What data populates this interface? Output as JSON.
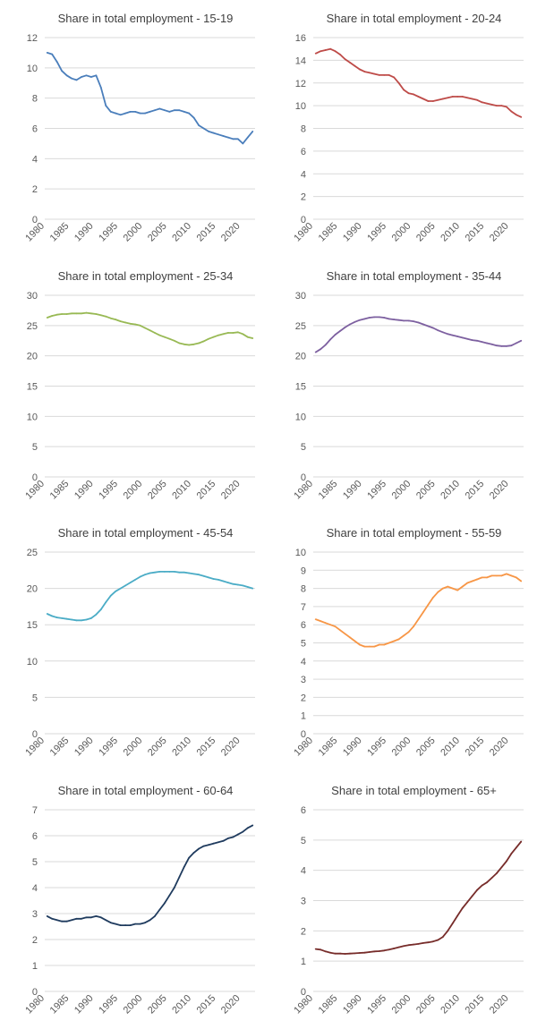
{
  "chart_data": [
    {
      "type": "line",
      "title": "Share in total employment - 15-19",
      "color": "#4a7ebb",
      "ylim": [
        0,
        12
      ],
      "yticks": [
        "0",
        "2",
        "4",
        "6",
        "8",
        "10",
        "12"
      ],
      "xticks": [
        "1980",
        "1985",
        "1990",
        "1995",
        "2000",
        "2005",
        "2010",
        "2015",
        "2020"
      ],
      "grid": true,
      "x": [
        1980,
        1981,
        1982,
        1983,
        1984,
        1985,
        1986,
        1987,
        1988,
        1989,
        1990,
        1991,
        1992,
        1993,
        1994,
        1995,
        1996,
        1997,
        1998,
        1999,
        2000,
        2001,
        2002,
        2003,
        2004,
        2005,
        2006,
        2007,
        2008,
        2009,
        2010,
        2011,
        2012,
        2013,
        2014,
        2015,
        2016,
        2017,
        2018,
        2019,
        2020,
        2021,
        2022
      ],
      "values": [
        11.0,
        10.9,
        10.4,
        9.8,
        9.5,
        9.3,
        9.2,
        9.4,
        9.5,
        9.4,
        9.5,
        8.7,
        7.5,
        7.1,
        7.0,
        6.9,
        7.0,
        7.1,
        7.1,
        7.0,
        7.0,
        7.1,
        7.2,
        7.3,
        7.2,
        7.1,
        7.2,
        7.2,
        7.1,
        7.0,
        6.7,
        6.2,
        6.0,
        5.8,
        5.7,
        5.6,
        5.5,
        5.4,
        5.3,
        5.3,
        5.0,
        5.4,
        5.8
      ]
    },
    {
      "type": "line",
      "title": "Share in total employment - 20-24",
      "color": "#be4b48",
      "ylim": [
        0,
        16
      ],
      "yticks": [
        "0",
        "2",
        "4",
        "6",
        "8",
        "10",
        "12",
        "14",
        "16"
      ],
      "xticks": [
        "1980",
        "1985",
        "1990",
        "1995",
        "2000",
        "2005",
        "2010",
        "2015",
        "2020"
      ],
      "grid": true,
      "x": [
        1980,
        1981,
        1982,
        1983,
        1984,
        1985,
        1986,
        1987,
        1988,
        1989,
        1990,
        1991,
        1992,
        1993,
        1994,
        1995,
        1996,
        1997,
        1998,
        1999,
        2000,
        2001,
        2002,
        2003,
        2004,
        2005,
        2006,
        2007,
        2008,
        2009,
        2010,
        2011,
        2012,
        2013,
        2014,
        2015,
        2016,
        2017,
        2018,
        2019,
        2020,
        2021,
        2022
      ],
      "values": [
        14.6,
        14.8,
        14.9,
        15.0,
        14.8,
        14.5,
        14.1,
        13.8,
        13.5,
        13.2,
        13.0,
        12.9,
        12.8,
        12.7,
        12.7,
        12.7,
        12.5,
        12.0,
        11.4,
        11.1,
        11.0,
        10.8,
        10.6,
        10.4,
        10.4,
        10.5,
        10.6,
        10.7,
        10.8,
        10.8,
        10.8,
        10.7,
        10.6,
        10.5,
        10.3,
        10.2,
        10.1,
        10.0,
        10.0,
        9.9,
        9.5,
        9.2,
        9.0
      ]
    },
    {
      "type": "line",
      "title": "Share in total employment - 25-34",
      "color": "#98b954",
      "ylim": [
        0,
        30
      ],
      "yticks": [
        "0",
        "5",
        "10",
        "15",
        "20",
        "25",
        "30"
      ],
      "xticks": [
        "1980",
        "1985",
        "1990",
        "1995",
        "2000",
        "2005",
        "2010",
        "2015",
        "2020"
      ],
      "grid": true,
      "x": [
        1980,
        1981,
        1982,
        1983,
        1984,
        1985,
        1986,
        1987,
        1988,
        1989,
        1990,
        1991,
        1992,
        1993,
        1994,
        1995,
        1996,
        1997,
        1998,
        1999,
        2000,
        2001,
        2002,
        2003,
        2004,
        2005,
        2006,
        2007,
        2008,
        2009,
        2010,
        2011,
        2012,
        2013,
        2014,
        2015,
        2016,
        2017,
        2018,
        2019,
        2020,
        2021,
        2022
      ],
      "values": [
        26.3,
        26.6,
        26.8,
        26.9,
        26.9,
        27.0,
        27.0,
        27.0,
        27.1,
        27.0,
        26.9,
        26.7,
        26.5,
        26.2,
        26.0,
        25.7,
        25.5,
        25.3,
        25.2,
        25.0,
        24.6,
        24.2,
        23.8,
        23.4,
        23.1,
        22.8,
        22.5,
        22.1,
        21.9,
        21.8,
        21.9,
        22.1,
        22.4,
        22.8,
        23.1,
        23.4,
        23.6,
        23.8,
        23.8,
        23.9,
        23.6,
        23.1,
        22.9
      ]
    },
    {
      "type": "line",
      "title": "Share in total employment - 35-44",
      "color": "#7d60a0",
      "ylim": [
        0,
        30
      ],
      "yticks": [
        "0",
        "5",
        "10",
        "15",
        "20",
        "25",
        "30"
      ],
      "xticks": [
        "1980",
        "1985",
        "1990",
        "1995",
        "2000",
        "2005",
        "2010",
        "2015",
        "2020"
      ],
      "grid": true,
      "x": [
        1980,
        1981,
        1982,
        1983,
        1984,
        1985,
        1986,
        1987,
        1988,
        1989,
        1990,
        1991,
        1992,
        1993,
        1994,
        1995,
        1996,
        1997,
        1998,
        1999,
        2000,
        2001,
        2002,
        2003,
        2004,
        2005,
        2006,
        2007,
        2008,
        2009,
        2010,
        2011,
        2012,
        2013,
        2014,
        2015,
        2016,
        2017,
        2018,
        2019,
        2020,
        2021,
        2022
      ],
      "values": [
        20.6,
        21.1,
        21.8,
        22.7,
        23.5,
        24.1,
        24.7,
        25.2,
        25.6,
        25.9,
        26.1,
        26.3,
        26.4,
        26.4,
        26.3,
        26.1,
        26.0,
        25.9,
        25.8,
        25.8,
        25.7,
        25.5,
        25.2,
        24.9,
        24.6,
        24.2,
        23.9,
        23.6,
        23.4,
        23.2,
        23.0,
        22.8,
        22.6,
        22.5,
        22.3,
        22.1,
        21.9,
        21.7,
        21.6,
        21.6,
        21.7,
        22.1,
        22.5
      ]
    },
    {
      "type": "line",
      "title": "Share in total employment - 45-54",
      "color": "#4bacc6",
      "ylim": [
        0,
        25
      ],
      "yticks": [
        "0",
        "5",
        "10",
        "15",
        "20",
        "25"
      ],
      "xticks": [
        "1980",
        "1985",
        "1990",
        "1995",
        "2000",
        "2005",
        "2010",
        "2015",
        "2020"
      ],
      "grid": true,
      "x": [
        1980,
        1981,
        1982,
        1983,
        1984,
        1985,
        1986,
        1987,
        1988,
        1989,
        1990,
        1991,
        1992,
        1993,
        1994,
        1995,
        1996,
        1997,
        1998,
        1999,
        2000,
        2001,
        2002,
        2003,
        2004,
        2005,
        2006,
        2007,
        2008,
        2009,
        2010,
        2011,
        2012,
        2013,
        2014,
        2015,
        2016,
        2017,
        2018,
        2019,
        2020,
        2021,
        2022
      ],
      "values": [
        16.5,
        16.2,
        16.0,
        15.9,
        15.8,
        15.7,
        15.6,
        15.6,
        15.7,
        15.9,
        16.4,
        17.1,
        18.1,
        19.0,
        19.6,
        20.0,
        20.4,
        20.8,
        21.2,
        21.6,
        21.9,
        22.1,
        22.2,
        22.3,
        22.3,
        22.3,
        22.3,
        22.2,
        22.2,
        22.1,
        22.0,
        21.9,
        21.7,
        21.5,
        21.3,
        21.2,
        21.0,
        20.8,
        20.6,
        20.5,
        20.4,
        20.2,
        20.0
      ]
    },
    {
      "type": "line",
      "title": "Share in total employment - 55-59",
      "color": "#f79646",
      "ylim": [
        0,
        10
      ],
      "yticks": [
        "0",
        "1",
        "2",
        "3",
        "4",
        "5",
        "6",
        "7",
        "8",
        "9",
        "10"
      ],
      "xticks": [
        "1980",
        "1985",
        "1990",
        "1995",
        "2000",
        "2005",
        "2010",
        "2015",
        "2020"
      ],
      "grid": true,
      "x": [
        1980,
        1981,
        1982,
        1983,
        1984,
        1985,
        1986,
        1987,
        1988,
        1989,
        1990,
        1991,
        1992,
        1993,
        1994,
        1995,
        1996,
        1997,
        1998,
        1999,
        2000,
        2001,
        2002,
        2003,
        2004,
        2005,
        2006,
        2007,
        2008,
        2009,
        2010,
        2011,
        2012,
        2013,
        2014,
        2015,
        2016,
        2017,
        2018,
        2019,
        2020,
        2021,
        2022
      ],
      "values": [
        6.3,
        6.2,
        6.1,
        6.0,
        5.9,
        5.7,
        5.5,
        5.3,
        5.1,
        4.9,
        4.8,
        4.8,
        4.8,
        4.9,
        4.9,
        5.0,
        5.1,
        5.2,
        5.4,
        5.6,
        5.9,
        6.3,
        6.7,
        7.1,
        7.5,
        7.8,
        8.0,
        8.1,
        8.0,
        7.9,
        8.1,
        8.3,
        8.4,
        8.5,
        8.6,
        8.6,
        8.7,
        8.7,
        8.7,
        8.8,
        8.7,
        8.6,
        8.4
      ]
    },
    {
      "type": "line",
      "title": "Share in total employment - 60-64",
      "color": "#1f3b5e",
      "ylim": [
        0,
        7
      ],
      "yticks": [
        "0",
        "1",
        "2",
        "3",
        "4",
        "5",
        "6",
        "7"
      ],
      "xticks": [
        "1980",
        "1985",
        "1990",
        "1995",
        "2000",
        "2005",
        "2010",
        "2015",
        "2020"
      ],
      "grid": true,
      "x": [
        1980,
        1981,
        1982,
        1983,
        1984,
        1985,
        1986,
        1987,
        1988,
        1989,
        1990,
        1991,
        1992,
        1993,
        1994,
        1995,
        1996,
        1997,
        1998,
        1999,
        2000,
        2001,
        2002,
        2003,
        2004,
        2005,
        2006,
        2007,
        2008,
        2009,
        2010,
        2011,
        2012,
        2013,
        2014,
        2015,
        2016,
        2017,
        2018,
        2019,
        2020,
        2021,
        2022
      ],
      "values": [
        2.9,
        2.8,
        2.75,
        2.7,
        2.7,
        2.75,
        2.8,
        2.8,
        2.85,
        2.85,
        2.9,
        2.85,
        2.75,
        2.65,
        2.6,
        2.55,
        2.55,
        2.55,
        2.6,
        2.6,
        2.65,
        2.75,
        2.9,
        3.15,
        3.4,
        3.7,
        4.0,
        4.4,
        4.8,
        5.15,
        5.35,
        5.5,
        5.6,
        5.65,
        5.7,
        5.75,
        5.8,
        5.9,
        5.95,
        6.05,
        6.15,
        6.3,
        6.4
      ]
    },
    {
      "type": "line",
      "title": "Share in total employment - 65+",
      "color": "#772c2a",
      "ylim": [
        0,
        6
      ],
      "yticks": [
        "0",
        "1",
        "2",
        "3",
        "4",
        "5",
        "6"
      ],
      "xticks": [
        "1980",
        "1985",
        "1990",
        "1995",
        "2000",
        "2005",
        "2010",
        "2015",
        "2020"
      ],
      "grid": true,
      "x": [
        1980,
        1981,
        1982,
        1983,
        1984,
        1985,
        1986,
        1987,
        1988,
        1989,
        1990,
        1991,
        1992,
        1993,
        1994,
        1995,
        1996,
        1997,
        1998,
        1999,
        2000,
        2001,
        2002,
        2003,
        2004,
        2005,
        2006,
        2007,
        2008,
        2009,
        2010,
        2011,
        2012,
        2013,
        2014,
        2015,
        2016,
        2017,
        2018,
        2019,
        2020,
        2021,
        2022
      ],
      "values": [
        1.4,
        1.38,
        1.32,
        1.28,
        1.25,
        1.25,
        1.24,
        1.25,
        1.26,
        1.27,
        1.28,
        1.3,
        1.32,
        1.33,
        1.35,
        1.38,
        1.42,
        1.46,
        1.5,
        1.53,
        1.55,
        1.57,
        1.6,
        1.62,
        1.65,
        1.7,
        1.8,
        2.0,
        2.25,
        2.5,
        2.75,
        2.95,
        3.15,
        3.35,
        3.5,
        3.6,
        3.75,
        3.9,
        4.1,
        4.3,
        4.55,
        4.75,
        4.95
      ]
    }
  ]
}
